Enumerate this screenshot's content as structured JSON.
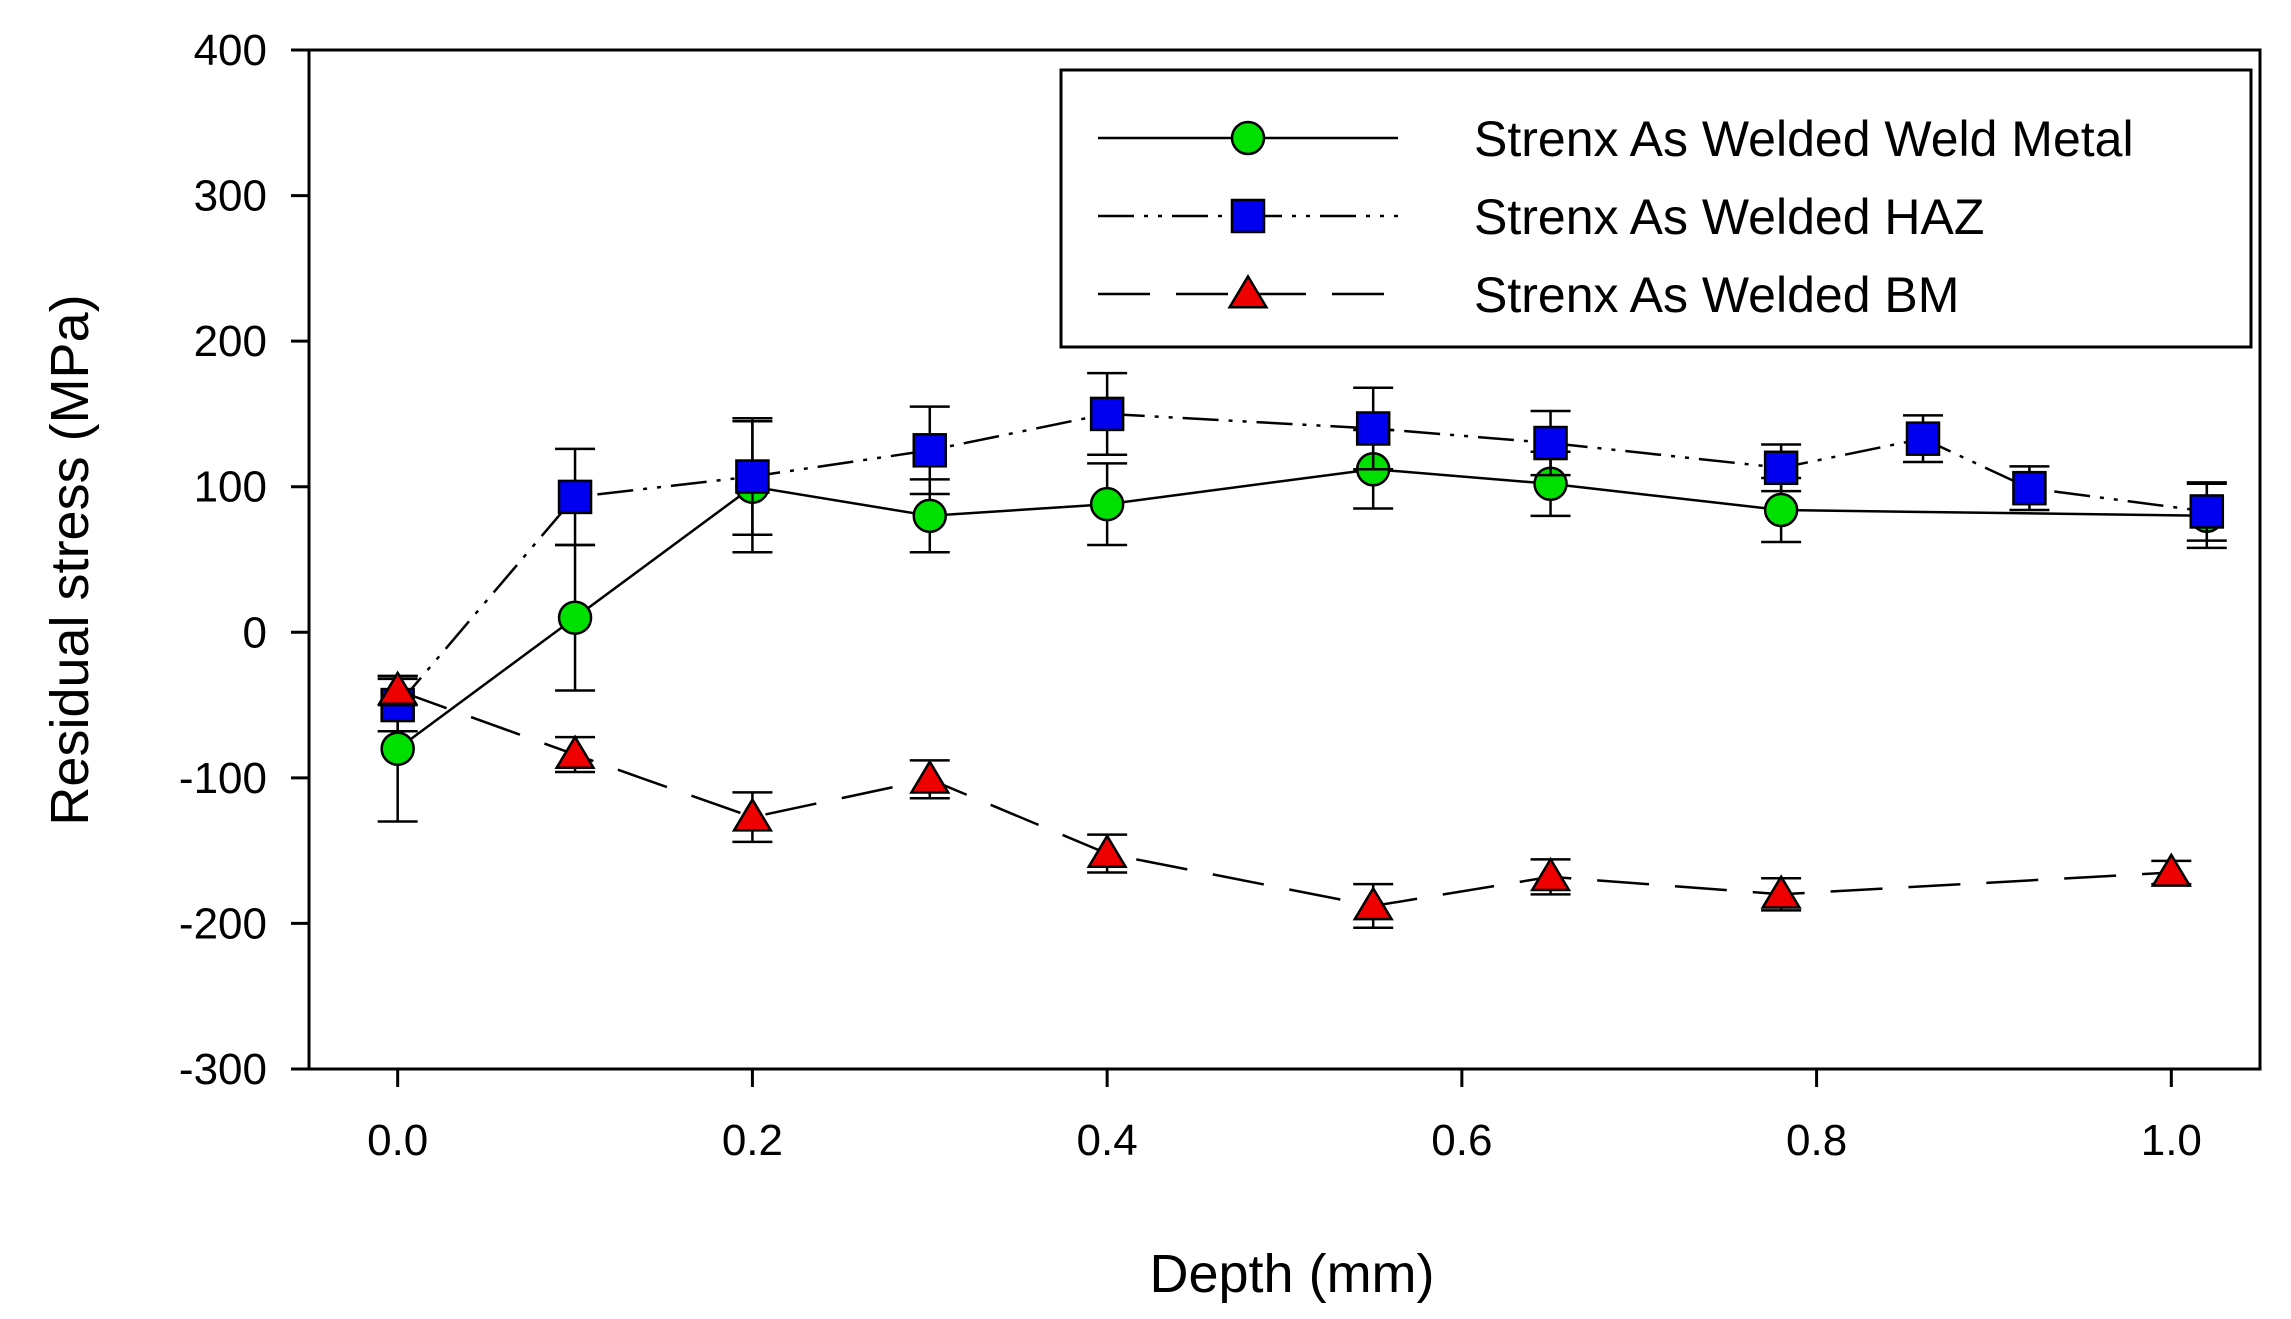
{
  "chart_data": {
    "type": "line",
    "xlabel": "Depth (mm)",
    "ylabel": "Residual stress (MPa)",
    "xlim": [
      -0.05,
      1.05
    ],
    "ylim": [
      -300,
      400
    ],
    "xticks": [
      0.0,
      0.2,
      0.4,
      0.6,
      0.8,
      1.0
    ],
    "xtick_labels": [
      "0.0",
      "0.2",
      "0.4",
      "0.6",
      "0.8",
      "1.0"
    ],
    "yticks": [
      -300,
      -200,
      -100,
      0,
      100,
      200,
      300,
      400
    ],
    "ytick_labels": [
      "-300",
      "-200",
      "-100",
      "0",
      "100",
      "200",
      "300",
      "400"
    ],
    "grid": false,
    "legend_position": "top-right",
    "series": [
      {
        "name": "Strenx As Welded Weld Metal",
        "marker": "circle",
        "line_style": "solid",
        "color": "#00e000",
        "x": [
          0.0,
          0.1,
          0.2,
          0.3,
          0.4,
          0.55,
          0.65,
          0.78,
          1.02
        ],
        "y": [
          -80,
          10,
          100,
          80,
          88,
          112,
          102,
          84,
          80
        ],
        "error": [
          50,
          50,
          45,
          25,
          28,
          27,
          22,
          22,
          22
        ]
      },
      {
        "name": "Strenx As Welded HAZ",
        "marker": "square",
        "line_style": "dash-dot-dot",
        "color": "#0000ee",
        "x": [
          0.0,
          0.1,
          0.2,
          0.3,
          0.4,
          0.55,
          0.65,
          0.78,
          0.86,
          0.92,
          1.02
        ],
        "y": [
          -50,
          93,
          107,
          125,
          150,
          140,
          130,
          113,
          133,
          99,
          83
        ],
        "error": [
          18,
          33,
          40,
          30,
          28,
          28,
          22,
          16,
          16,
          15,
          20
        ]
      },
      {
        "name": "Strenx As Welded BM",
        "marker": "triangle",
        "line_style": "long-dash",
        "color": "#ee0000",
        "x": [
          0.0,
          0.1,
          0.2,
          0.3,
          0.4,
          0.55,
          0.65,
          0.78,
          1.0
        ],
        "y": [
          -40,
          -84,
          -127,
          -101,
          -152,
          -188,
          -168,
          -180,
          -165
        ],
        "error": [
          10,
          12,
          17,
          13,
          13,
          15,
          12,
          11,
          8
        ]
      }
    ]
  }
}
